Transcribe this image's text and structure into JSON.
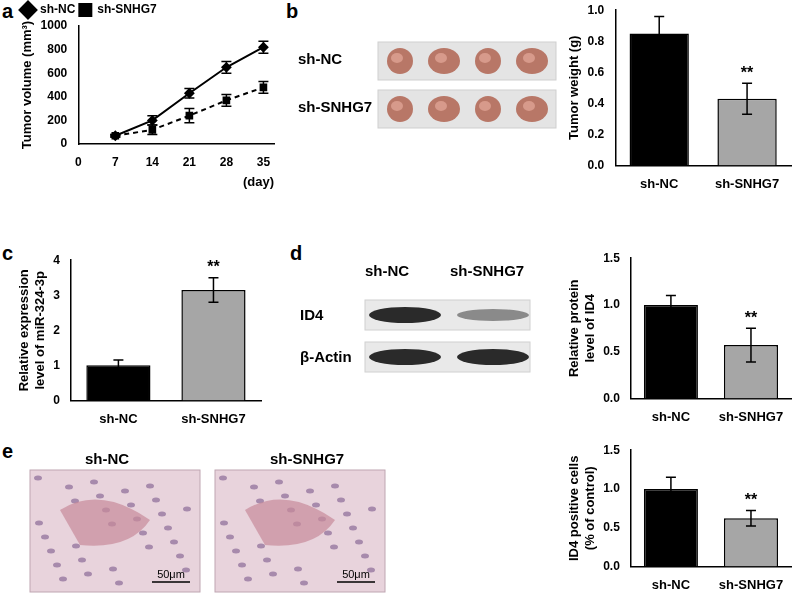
{
  "chart_data": [
    {
      "type": "line",
      "label": "a",
      "y_label": "Tumor volume (mm³)",
      "x_label": "(day)",
      "x": [
        7,
        14,
        21,
        28,
        35
      ],
      "series": [
        {
          "name": "sh-NC",
          "color": "#000000",
          "marker": "diamond",
          "line_style": "solid",
          "values": [
            70,
            200,
            430,
            650,
            820
          ],
          "errors": [
            10,
            40,
            40,
            50,
            50
          ]
        },
        {
          "name": "sh-SNHG7",
          "color": "#000000",
          "marker": "square",
          "line_style": "dashed",
          "values": [
            70,
            120,
            240,
            370,
            480
          ],
          "errors": [
            10,
            40,
            60,
            50,
            50
          ]
        }
      ],
      "xlim": [
        0,
        37
      ],
      "xticks": [
        0,
        7,
        14,
        21,
        28,
        35
      ],
      "ylim": [
        0,
        1000
      ],
      "yticks": [
        0,
        200,
        400,
        600,
        800,
        1000
      ],
      "grid": false,
      "legend": "upper left"
    },
    {
      "type": "bar",
      "label": "b",
      "y_label": [
        "Tumor weight (g)"
      ],
      "categories": [
        "sh-NC",
        "sh-SNHG7"
      ],
      "values": [
        0.85,
        0.43
      ],
      "errors": [
        0.11,
        0.1
      ],
      "colors": [
        "#000000",
        "#a6a6a6"
      ],
      "annotations": [
        {
          "category": "sh-SNHG7",
          "text": "**"
        }
      ],
      "ylim": [
        0,
        1.0
      ],
      "yticks": [
        {
          "value": 0,
          "label": "0.0"
        },
        0.2,
        0.4,
        0.6,
        0.8,
        {
          "value": 1,
          "label": "1.0"
        }
      ],
      "grid": false
    },
    {
      "type": "bar",
      "label": "c",
      "y_label": [
        "Relative expression",
        "level of miR-324-3p"
      ],
      "categories": [
        "sh-NC",
        "sh-SNHG7"
      ],
      "values": [
        1.0,
        3.15
      ],
      "errors": [
        0.15,
        0.35
      ],
      "colors": [
        "#000000",
        "#a6a6a6"
      ],
      "annotations": [
        {
          "category": "sh-SNHG7",
          "text": "**"
        }
      ],
      "ylim": [
        0,
        4
      ],
      "yticks": [
        0,
        1,
        2,
        3,
        4
      ],
      "grid": false
    },
    {
      "type": "bar",
      "label": "d",
      "y_label": [
        "Relative protein",
        "level of ID4"
      ],
      "categories": [
        "sh-NC",
        "sh-SNHG7"
      ],
      "values": [
        1.0,
        0.57
      ],
      "errors": [
        0.1,
        0.18
      ],
      "colors": [
        "#000000",
        "#a6a6a6"
      ],
      "annotations": [
        {
          "category": "sh-SNHG7",
          "text": "**"
        }
      ],
      "ylim": [
        0,
        1.5
      ],
      "yticks": [
        {
          "value": 0,
          "label": "0.0"
        },
        0.5,
        {
          "value": 1,
          "label": "1.0"
        },
        1.5
      ],
      "grid": false
    },
    {
      "type": "bar",
      "label": "e",
      "y_label": [
        "ID4 positive cells",
        "(% of control)"
      ],
      "categories": [
        "sh-NC",
        "sh-SNHG7"
      ],
      "values": [
        1.0,
        0.62
      ],
      "errors": [
        0.15,
        0.1
      ],
      "colors": [
        "#000000",
        "#a6a6a6"
      ],
      "annotations": [
        {
          "category": "sh-SNHG7",
          "text": "**"
        }
      ],
      "ylim": [
        0,
        1.5
      ],
      "yticks": [
        {
          "value": 0,
          "label": "0.0"
        },
        0.5,
        {
          "value": 1,
          "label": "1.0"
        },
        1.5
      ],
      "grid": false
    }
  ],
  "figure": {
    "tumor_photos": {
      "rows": [
        "sh-NC",
        "sh-SNHG7"
      ]
    },
    "western_blot": {
      "columns": [
        "sh-NC",
        "sh-SNHG7"
      ],
      "rows": [
        "ID4",
        "β-Actin"
      ]
    },
    "ihc": {
      "images": [
        {
          "title": "sh-NC",
          "scale": "50μm"
        },
        {
          "title": "sh-SNHG7",
          "scale": "50μm"
        }
      ]
    }
  }
}
